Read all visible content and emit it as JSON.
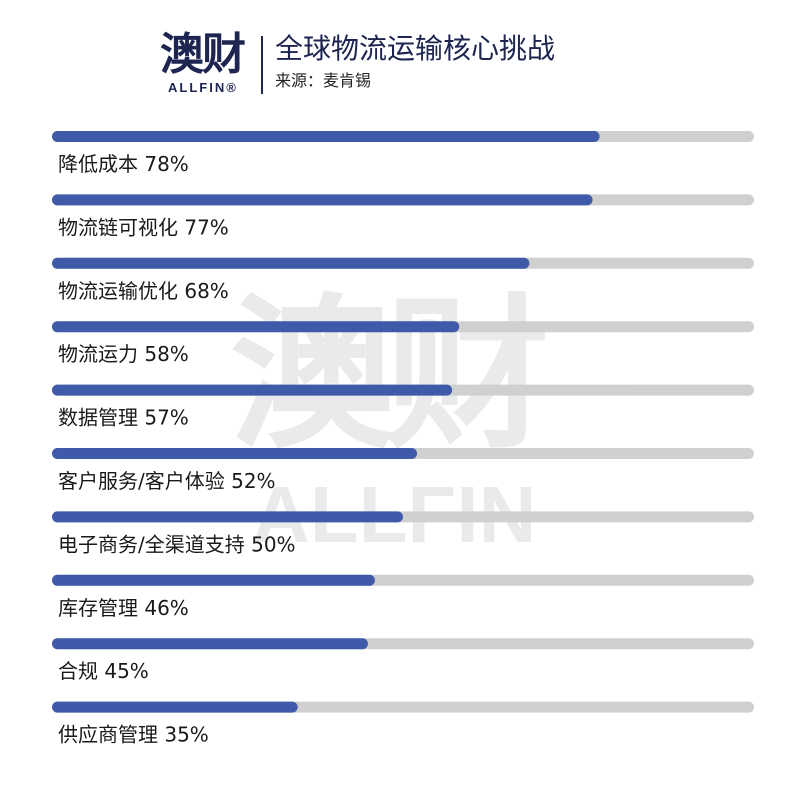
{
  "header": {
    "logo_cn": "澳财",
    "logo_en": "ALLFIN®",
    "title": "全球物流运输核心挑战",
    "source": "来源：麦肯锡"
  },
  "watermark": {
    "cn": "澳财",
    "en": "ALLFIN"
  },
  "colors": {
    "bar_fill": "#3f5aa8",
    "bar_track": "#d0d0d0",
    "brand": "#1d2550"
  },
  "chart_data": {
    "type": "bar",
    "orientation": "horizontal",
    "title": "全球物流运输核心挑战",
    "unit": "%",
    "xlim": [
      0,
      100
    ],
    "grid": false,
    "categories": [
      "降低成本",
      "物流链可视化",
      "物流运输优化",
      "物流运力",
      "数据管理",
      "客户服务/客户体验",
      "电子商务/全渠道支持",
      "库存管理",
      "合规",
      "供应商管理"
    ],
    "values": [
      78,
      77,
      68,
      58,
      57,
      52,
      50,
      46,
      45,
      35
    ]
  }
}
